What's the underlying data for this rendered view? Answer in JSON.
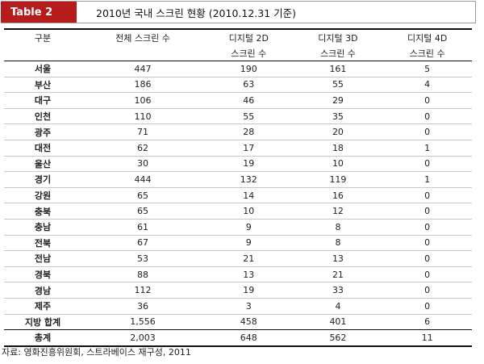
{
  "header": {
    "badge": "Table 2",
    "title": "2010년 국내 스크린 현황 (2010.12.31 기준)"
  },
  "table": {
    "columns": [
      {
        "line1": "구분",
        "line2": ""
      },
      {
        "line1": "전체 스크린 수",
        "line2": ""
      },
      {
        "line1": "디지털 2D",
        "line2": "스크린 수"
      },
      {
        "line1": "디지털 3D",
        "line2": "스크린 수"
      },
      {
        "line1": "디지털 4D",
        "line2": "스크린 수"
      }
    ],
    "rows": [
      {
        "region": "서울",
        "total": "447",
        "d2": "190",
        "d3": "161",
        "d4": "5"
      },
      {
        "region": "부산",
        "total": "186",
        "d2": "63",
        "d3": "55",
        "d4": "4"
      },
      {
        "region": "대구",
        "total": "106",
        "d2": "46",
        "d3": "29",
        "d4": "0"
      },
      {
        "region": "인천",
        "total": "110",
        "d2": "55",
        "d3": "35",
        "d4": "0"
      },
      {
        "region": "광주",
        "total": "71",
        "d2": "28",
        "d3": "20",
        "d4": "0"
      },
      {
        "region": "대전",
        "total": "62",
        "d2": "17",
        "d3": "18",
        "d4": "1"
      },
      {
        "region": "울산",
        "total": "30",
        "d2": "19",
        "d3": "10",
        "d4": "0"
      },
      {
        "region": "경기",
        "total": "444",
        "d2": "132",
        "d3": "119",
        "d4": "1"
      },
      {
        "region": "강원",
        "total": "65",
        "d2": "14",
        "d3": "16",
        "d4": "0"
      },
      {
        "region": "충북",
        "total": "65",
        "d2": "10",
        "d3": "12",
        "d4": "0"
      },
      {
        "region": "충남",
        "total": "61",
        "d2": "9",
        "d3": "8",
        "d4": "0"
      },
      {
        "region": "전북",
        "total": "67",
        "d2": "9",
        "d3": "8",
        "d4": "0"
      },
      {
        "region": "전남",
        "total": "53",
        "d2": "21",
        "d3": "13",
        "d4": "0"
      },
      {
        "region": "경북",
        "total": "88",
        "d2": "13",
        "d3": "21",
        "d4": "0"
      },
      {
        "region": "경남",
        "total": "112",
        "d2": "19",
        "d3": "33",
        "d4": "0"
      },
      {
        "region": "제주",
        "total": "36",
        "d2": "3",
        "d3": "4",
        "d4": "0"
      },
      {
        "region": "지방 합계",
        "total": "1,556",
        "d2": "458",
        "d3": "401",
        "d4": "6"
      },
      {
        "region": "총계",
        "total": "2,003",
        "d2": "648",
        "d3": "562",
        "d4": "11"
      }
    ]
  },
  "footnote": "자료: 영화진흥위원회, 스트라베이스 재구성, 2011",
  "colors": {
    "badge": "#b71c1c"
  }
}
